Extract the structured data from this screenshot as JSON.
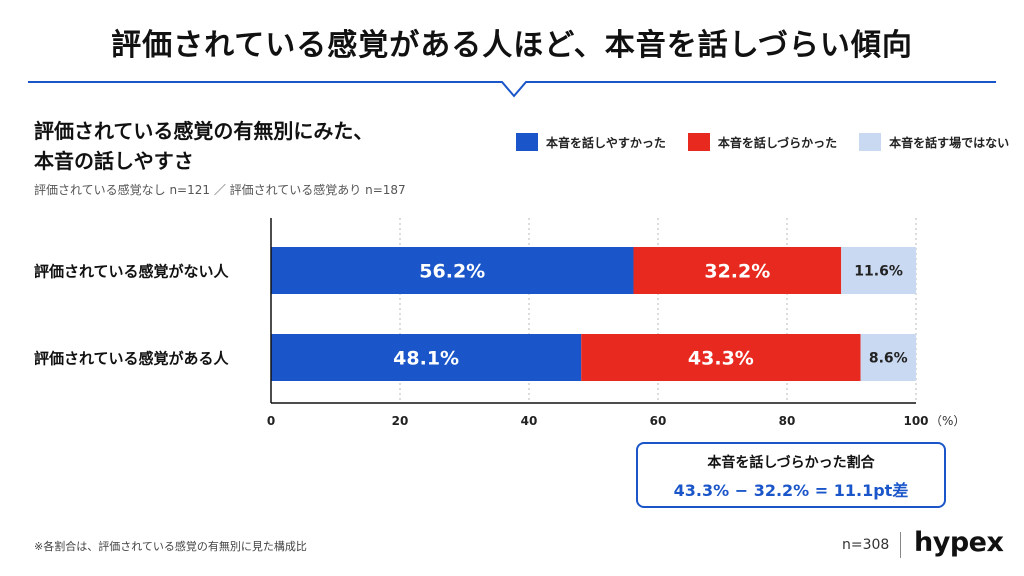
{
  "header": {
    "title": "評価されている感覚がある人ほど、本音を話しづらい傾向"
  },
  "chart_data": {
    "type": "bar",
    "orientation": "horizontal",
    "stacked": true,
    "title_lines": [
      "評価されている感覚の有無別にみた、",
      "本音の話しやすさ"
    ],
    "subtitle": "評価されている感覚なし n=121 ／ 評価されている感覚あり n=187",
    "categories": [
      "評価されている感覚がない人",
      "評価されている感覚がある人"
    ],
    "series": [
      {
        "name": "本音を話しやすかった",
        "color": "#1a56c9",
        "values": [
          56.2,
          48.1
        ],
        "labels": [
          "56.2%",
          "48.1%"
        ]
      },
      {
        "name": "本音を話しづらかった",
        "color": "#e8291f",
        "values": [
          32.2,
          43.3
        ],
        "labels": [
          "32.2%",
          "43.3%"
        ]
      },
      {
        "name": "本音を話す場ではない",
        "color": "#c9d9f1",
        "values": [
          11.6,
          8.6
        ],
        "labels": [
          "11.6%",
          "8.6%"
        ]
      }
    ],
    "xlim": [
      0,
      100
    ],
    "xticks": [
      "0",
      "20",
      "40",
      "60",
      "80",
      "100"
    ],
    "x_unit": "（%）",
    "grid": true,
    "legend": "top-right"
  },
  "difference_box": {
    "title": "本音を話しづらかった割合",
    "formula": "43.3% − 32.2% = 11.1pt差"
  },
  "footer": {
    "note": "※各割合は、評価されている感覚の有無別に見た構成比",
    "sample": "n=308",
    "brand": "hypex"
  },
  "colors": {
    "accent_blue": "#1a56c9",
    "accent_red": "#e8291f",
    "light_blue": "#c9d9f1",
    "rule": "#1a56c9"
  }
}
